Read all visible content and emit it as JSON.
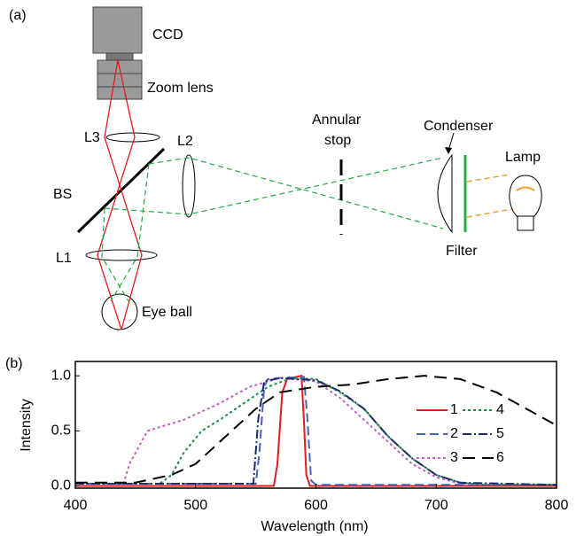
{
  "diagram": {
    "panel": "(a)",
    "ccd": "CCD",
    "zoom_lens": "Zoom lens",
    "l3": "L3",
    "l2": "L2",
    "bs": "BS",
    "l1": "L1",
    "eye": "Eye ball",
    "annular_stop": [
      "Annular",
      "stop"
    ],
    "condenser": "Condenser",
    "lamp": "Lamp",
    "filter": "Filter"
  },
  "chart_data": {
    "type": "line",
    "panel": "(b)",
    "xlabel": "Wavelength (nm)",
    "ylabel": "Intensity",
    "xlim": [
      400,
      800
    ],
    "ylim": [
      -0.02,
      1.13
    ],
    "xticks": [
      400,
      500,
      600,
      700,
      800
    ],
    "yticks": [
      {
        "value": 0,
        "label": "0.0"
      },
      {
        "value": 0.5,
        "label": "0.5"
      },
      {
        "value": 1,
        "label": "1.0"
      }
    ],
    "legend": "right",
    "series": [
      {
        "name": "1",
        "color": "#e41a1c",
        "linestyle": "solid",
        "x": [
          400,
          565,
          568,
          572,
          576,
          580,
          588,
          590,
          592,
          595,
          800
        ],
        "values": [
          0,
          0,
          0.2,
          0.85,
          0.97,
          0.98,
          1.0,
          0.6,
          0.1,
          0,
          0
        ]
      },
      {
        "name": "2",
        "color": "#4a63b0",
        "linestyle": "dashed",
        "x": [
          400,
          550,
          553,
          557,
          560,
          570,
          590,
          593,
          596,
          600,
          800
        ],
        "values": [
          0.02,
          0.02,
          0.3,
          0.9,
          0.97,
          0.98,
          0.99,
          0.6,
          0.05,
          0.01,
          0.01
        ]
      },
      {
        "name": "3",
        "color": "#c060c0",
        "linestyle": "dotted",
        "x": [
          400,
          440,
          445,
          460,
          490,
          520,
          545,
          570,
          600,
          620,
          640,
          660,
          680,
          700,
          720,
          800
        ],
        "values": [
          0.02,
          0.02,
          0.2,
          0.5,
          0.6,
          0.75,
          0.9,
          0.98,
          0.95,
          0.8,
          0.6,
          0.4,
          0.2,
          0.08,
          0.02,
          0.01
        ]
      },
      {
        "name": "4",
        "color": "#1a8a4a",
        "linestyle": "dotted",
        "x": [
          400,
          470,
          480,
          490,
          505,
          520,
          540,
          560,
          580,
          600,
          620,
          640,
          660,
          680,
          700,
          720,
          740,
          800
        ],
        "values": [
          0.02,
          0.02,
          0.1,
          0.3,
          0.5,
          0.6,
          0.75,
          0.9,
          0.98,
          0.97,
          0.85,
          0.7,
          0.45,
          0.25,
          0.1,
          0.03,
          0.01,
          0.01
        ]
      },
      {
        "name": "5",
        "color": "#1f2a6e",
        "linestyle": "dashdot",
        "x": [
          400,
          548,
          552,
          557,
          570,
          600,
          620,
          640,
          660,
          680,
          700,
          720,
          800
        ],
        "values": [
          0.02,
          0.02,
          0.6,
          0.95,
          0.98,
          0.96,
          0.86,
          0.7,
          0.45,
          0.25,
          0.1,
          0.03,
          0.01
        ]
      },
      {
        "name": "6",
        "color": "#000000",
        "linestyle": "longdash",
        "x": [
          400,
          450,
          480,
          500,
          520,
          550,
          570,
          600,
          630,
          660,
          690,
          720,
          750,
          775,
          800
        ],
        "values": [
          0.03,
          0.03,
          0.1,
          0.2,
          0.4,
          0.7,
          0.85,
          0.9,
          0.92,
          0.97,
          1.0,
          0.97,
          0.85,
          0.7,
          0.55
        ]
      }
    ]
  }
}
